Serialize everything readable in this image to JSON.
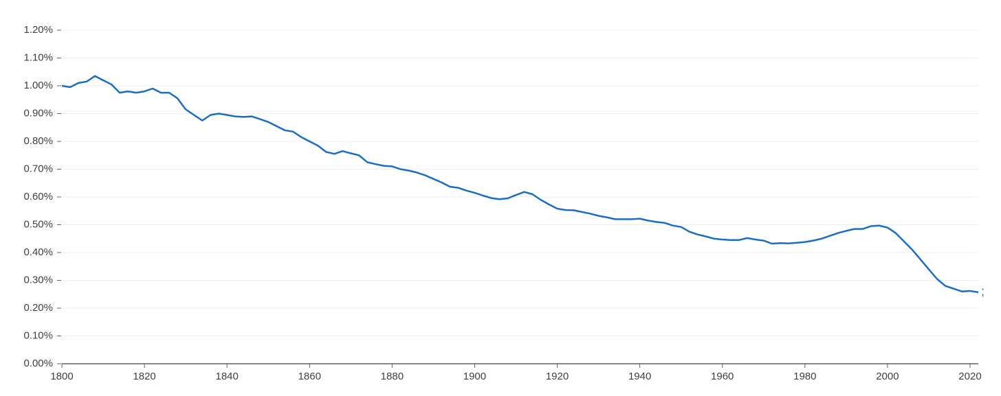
{
  "chart_data": {
    "type": "line",
    "x": [
      1800,
      1802,
      1804,
      1806,
      1808,
      1810,
      1812,
      1814,
      1816,
      1818,
      1820,
      1822,
      1824,
      1826,
      1828,
      1830,
      1832,
      1834,
      1836,
      1838,
      1840,
      1842,
      1844,
      1846,
      1848,
      1850,
      1852,
      1854,
      1856,
      1858,
      1860,
      1862,
      1864,
      1866,
      1868,
      1870,
      1872,
      1874,
      1876,
      1878,
      1880,
      1882,
      1884,
      1886,
      1888,
      1890,
      1892,
      1894,
      1896,
      1898,
      1900,
      1902,
      1904,
      1906,
      1908,
      1910,
      1912,
      1914,
      1916,
      1918,
      1920,
      1922,
      1924,
      1926,
      1928,
      1930,
      1932,
      1934,
      1936,
      1938,
      1940,
      1942,
      1944,
      1946,
      1948,
      1950,
      1952,
      1954,
      1956,
      1958,
      1960,
      1962,
      1964,
      1966,
      1968,
      1970,
      1972,
      1974,
      1976,
      1978,
      1980,
      1982,
      1984,
      1986,
      1988,
      1990,
      1992,
      1994,
      1996,
      1998,
      2000,
      2002,
      2004,
      2006,
      2008,
      2010,
      2012,
      2014,
      2016,
      2018,
      2020,
      2022
    ],
    "series": [
      {
        "name": ";",
        "color": "#1a6dc2",
        "values": [
          1.0,
          0.995,
          1.01,
          1.015,
          1.035,
          1.02,
          1.005,
          0.975,
          0.98,
          0.975,
          0.98,
          0.99,
          0.975,
          0.975,
          0.955,
          0.915,
          0.895,
          0.875,
          0.895,
          0.9,
          0.895,
          0.89,
          0.888,
          0.89,
          0.88,
          0.87,
          0.855,
          0.84,
          0.835,
          0.815,
          0.8,
          0.785,
          0.762,
          0.755,
          0.765,
          0.757,
          0.75,
          0.725,
          0.718,
          0.712,
          0.71,
          0.7,
          0.695,
          0.688,
          0.678,
          0.665,
          0.652,
          0.637,
          0.633,
          0.623,
          0.615,
          0.605,
          0.596,
          0.592,
          0.595,
          0.607,
          0.618,
          0.61,
          0.59,
          0.573,
          0.558,
          0.553,
          0.552,
          0.546,
          0.54,
          0.532,
          0.527,
          0.52,
          0.52,
          0.52,
          0.522,
          0.515,
          0.51,
          0.507,
          0.497,
          0.492,
          0.475,
          0.465,
          0.458,
          0.45,
          0.447,
          0.445,
          0.445,
          0.452,
          0.447,
          0.443,
          0.432,
          0.434,
          0.433,
          0.435,
          0.438,
          0.443,
          0.45,
          0.46,
          0.47,
          0.478,
          0.485,
          0.485,
          0.495,
          0.497,
          0.49,
          0.47,
          0.44,
          0.41,
          0.375,
          0.34,
          0.305,
          0.28,
          0.27,
          0.26,
          0.262,
          0.257
        ]
      }
    ],
    "xlim": [
      1800,
      2022
    ],
    "xticks": [
      1800,
      1820,
      1840,
      1860,
      1880,
      1900,
      1920,
      1940,
      1960,
      1980,
      2000,
      2020
    ],
    "ylim": [
      0,
      1.2
    ],
    "yticks": [
      {
        "value": 0,
        "label": "0.00%"
      },
      {
        "value": 0.1,
        "label": "0.10%"
      },
      {
        "value": 0.2,
        "label": "0.20%"
      },
      {
        "value": 0.3,
        "label": "0.30%"
      },
      {
        "value": 0.4,
        "label": "0.40%"
      },
      {
        "value": 0.5,
        "label": "0.50%"
      },
      {
        "value": 0.6,
        "label": "0.60%"
      },
      {
        "value": 0.7,
        "label": "0.70%"
      },
      {
        "value": 0.8,
        "label": "0.80%"
      },
      {
        "value": 0.9,
        "label": "0.90%"
      },
      {
        "value": 1.0,
        "label": "1.00%"
      },
      {
        "value": 1.1,
        "label": "1.10%"
      },
      {
        "value": 1.2,
        "label": "1.20%"
      }
    ],
    "grid": true
  }
}
